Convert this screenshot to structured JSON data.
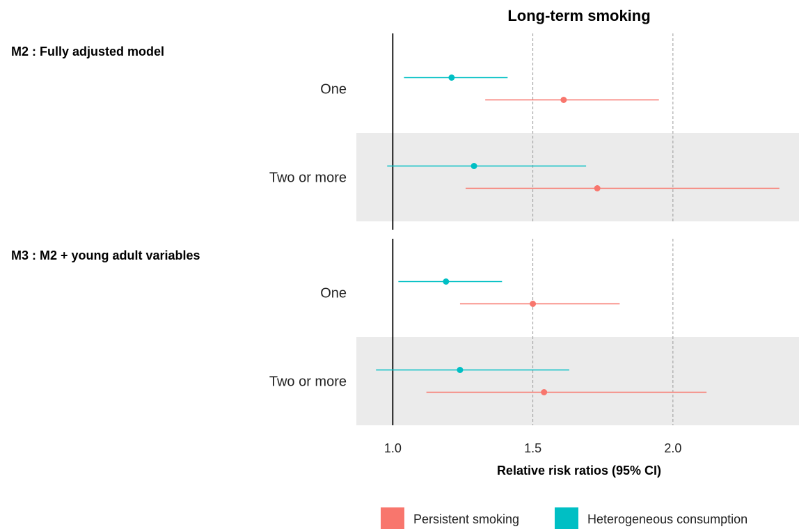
{
  "chart_data": {
    "type": "forest",
    "title": "Long-term smoking",
    "xlabel": "Relative risk ratios (95% CI)",
    "xlim": [
      0.87,
      2.45
    ],
    "xticks": [
      1.0,
      1.5,
      2.0
    ],
    "xtick_labels": [
      "1.0",
      "1.5",
      "2.0"
    ],
    "reference_line": 1.0,
    "dashed_gridlines": [
      1.5,
      2.0
    ],
    "legend": {
      "placement": "bottom",
      "entries": [
        {
          "key": "persistent",
          "label": "Persistent smoking",
          "color": "#F8766D"
        },
        {
          "key": "heterogeneous",
          "label": "Heterogeneous consumption",
          "color": "#00BFC4"
        }
      ]
    },
    "panels": [
      {
        "title": "M2 : Fully adjusted model",
        "rows": [
          {
            "label": "One",
            "shaded": false,
            "estimates": [
              {
                "series": "heterogeneous",
                "est": 1.21,
                "lo": 1.04,
                "hi": 1.41
              },
              {
                "series": "persistent",
                "est": 1.61,
                "lo": 1.33,
                "hi": 1.95
              }
            ]
          },
          {
            "label": "Two or more",
            "shaded": true,
            "estimates": [
              {
                "series": "heterogeneous",
                "est": 1.29,
                "lo": 0.98,
                "hi": 1.69
              },
              {
                "series": "persistent",
                "est": 1.73,
                "lo": 1.26,
                "hi": 2.38
              }
            ]
          }
        ]
      },
      {
        "title": "M3 : M2 + young adult variables",
        "rows": [
          {
            "label": "One",
            "shaded": false,
            "estimates": [
              {
                "series": "heterogeneous",
                "est": 1.19,
                "lo": 1.02,
                "hi": 1.39
              },
              {
                "series": "persistent",
                "est": 1.5,
                "lo": 1.24,
                "hi": 1.81
              }
            ]
          },
          {
            "label": "Two or more",
            "shaded": true,
            "estimates": [
              {
                "series": "heterogeneous",
                "est": 1.24,
                "lo": 0.94,
                "hi": 1.63
              },
              {
                "series": "persistent",
                "est": 1.54,
                "lo": 1.12,
                "hi": 2.12
              }
            ]
          }
        ]
      }
    ]
  }
}
